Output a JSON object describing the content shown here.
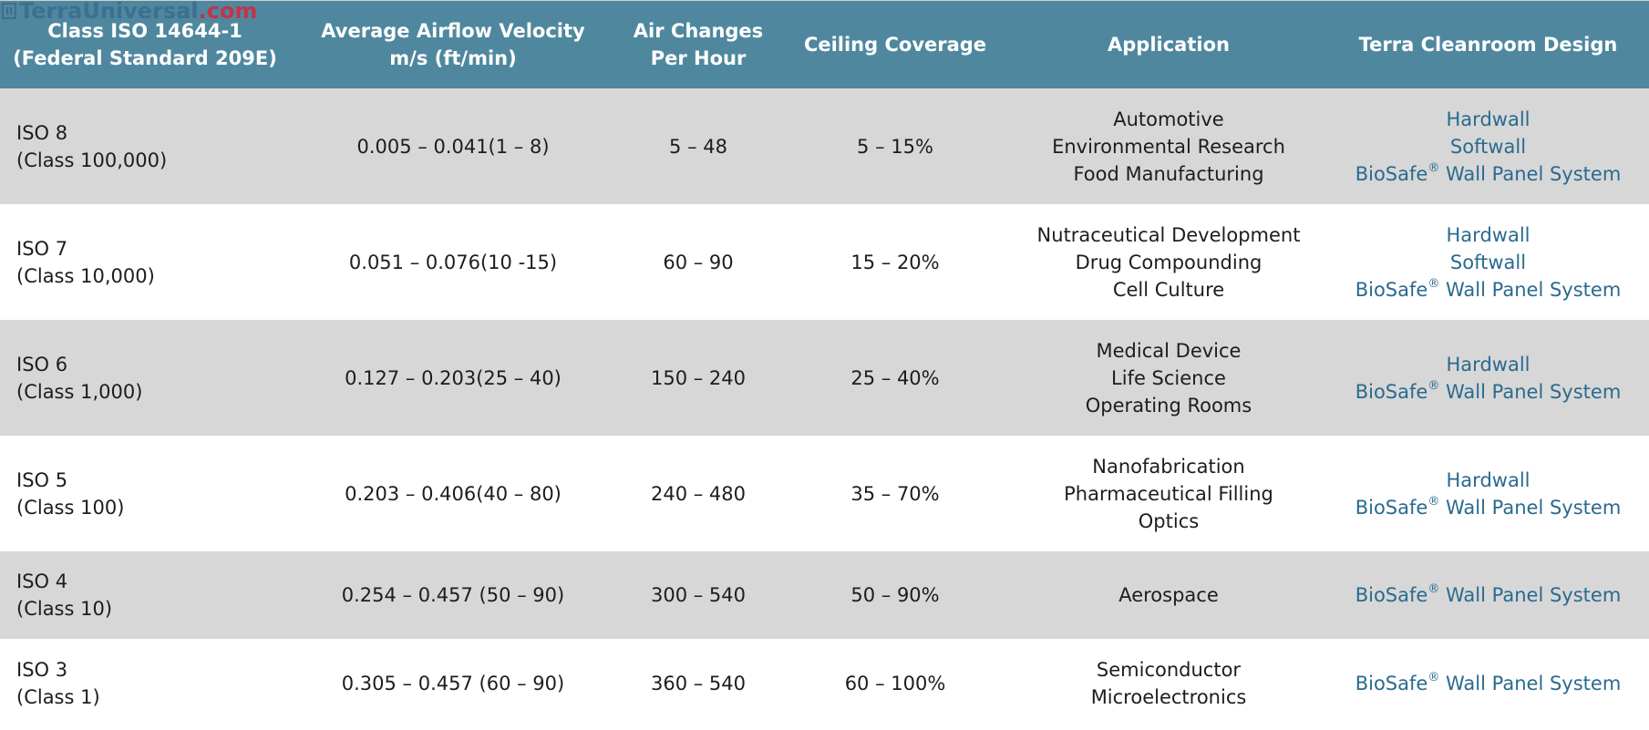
{
  "watermark": {
    "name": "TerraUniversal",
    "domain": ".com"
  },
  "colors": {
    "header_bg": "#4f889e",
    "shaded_row": "#d7d7d7",
    "link": "#2a6a8f"
  },
  "header": {
    "col1_line1": "Class ISO 14644-1",
    "col1_line2": "(Federal Standard 209E)",
    "col2_line1": "Average Airflow Velocity",
    "col2_line2": "m/s (ft/min)",
    "col3_line1": "Air Changes",
    "col3_line2": "Per Hour",
    "col4": "Ceiling Coverage",
    "col5": "Application",
    "col6": "Terra Cleanroom Design"
  },
  "rows": [
    {
      "iso": "ISO 8",
      "fed": "(Class 100,000)",
      "velocity": "0.005 – 0.041(1 – 8)",
      "changes": "5 – 48",
      "coverage": "5 – 15%",
      "apps": [
        "Automotive",
        "Environmental Research",
        "Food Manufacturing"
      ],
      "hardwall": "Hardwall",
      "softwall": "Softwall",
      "biosafe": "BioSafe",
      "reg": "®",
      "panel": " Wall Panel System"
    },
    {
      "iso": "ISO 7",
      "fed": "(Class 10,000)",
      "velocity": "0.051 – 0.076(10 -15)",
      "changes": "60 – 90",
      "coverage": "15 – 20%",
      "apps": [
        "Nutraceutical Development",
        "Drug Compounding",
        "Cell Culture"
      ],
      "hardwall": "Hardwall",
      "softwall": "Softwall",
      "biosafe": "BioSafe",
      "reg": "®",
      "panel": " Wall Panel System"
    },
    {
      "iso": "ISO 6",
      "fed": "(Class 1,000)",
      "velocity": "0.127 – 0.203(25 – 40)",
      "changes": "150 – 240",
      "coverage": "25 – 40%",
      "apps": [
        "Medical Device",
        "Life Science",
        "Operating Rooms"
      ],
      "hardwall": "Hardwall",
      "biosafe": "BioSafe",
      "reg": "®",
      "panel": " Wall Panel System"
    },
    {
      "iso": "ISO 5",
      "fed": "(Class 100)",
      "velocity": "0.203 – 0.406(40 – 80)",
      "changes": "240 – 480",
      "coverage": "35 – 70%",
      "apps": [
        "Nanofabrication",
        "Pharmaceutical Filling",
        "Optics"
      ],
      "hardwall": "Hardwall",
      "biosafe": "BioSafe",
      "reg": "®",
      "panel": " Wall Panel System"
    },
    {
      "iso": "ISO 4",
      "fed": "(Class 10)",
      "velocity": "0.254 – 0.457 (50 – 90)",
      "changes": "300 – 540",
      "coverage": "50 – 90%",
      "apps": [
        "Aerospace"
      ],
      "biosafe": "BioSafe",
      "reg": "®",
      "panel": " Wall Panel System"
    },
    {
      "iso": "ISO 3",
      "fed": "(Class 1)",
      "velocity": "0.305 – 0.457 (60 – 90)",
      "changes": "360 – 540",
      "coverage": "60 – 100%",
      "apps": [
        "Semiconductor",
        "Microelectronics"
      ],
      "biosafe": "BioSafe",
      "reg": "®",
      "panel": " Wall Panel System"
    }
  ]
}
